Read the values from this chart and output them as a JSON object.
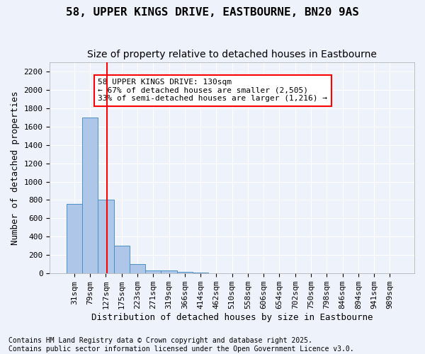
{
  "title1": "58, UPPER KINGS DRIVE, EASTBOURNE, BN20 9AS",
  "title2": "Size of property relative to detached houses in Eastbourne",
  "xlabel": "Distribution of detached houses by size in Eastbourne",
  "ylabel": "Number of detached properties",
  "bin_labels": [
    "31sqm",
    "79sqm",
    "127sqm",
    "175sqm",
    "223sqm",
    "271sqm",
    "319sqm",
    "366sqm",
    "414sqm",
    "462sqm",
    "510sqm",
    "558sqm",
    "606sqm",
    "654sqm",
    "702sqm",
    "750sqm",
    "798sqm",
    "846sqm",
    "894sqm",
    "941sqm",
    "989sqm"
  ],
  "bar_heights": [
    760,
    1695,
    800,
    300,
    105,
    35,
    35,
    20,
    10,
    5,
    3,
    2,
    1,
    0,
    0,
    0,
    0,
    0,
    0,
    0,
    0
  ],
  "bar_color": "#aec6e8",
  "bar_edge_color": "#4a90c4",
  "red_line_x": 2.08,
  "annotation_text": "58 UPPER KINGS DRIVE: 130sqm\n← 67% of detached houses are smaller (2,505)\n33% of semi-detached houses are larger (1,216) →",
  "annotation_box_color": "white",
  "annotation_box_edge_color": "red",
  "ylim": [
    0,
    2300
  ],
  "yticks": [
    0,
    200,
    400,
    600,
    800,
    1000,
    1200,
    1400,
    1600,
    1800,
    2000,
    2200
  ],
  "footnote": "Contains HM Land Registry data © Crown copyright and database right 2025.\nContains public sector information licensed under the Open Government Licence v3.0.",
  "background_color": "#eef2fb",
  "grid_color": "white",
  "title_fontsize": 11.5,
  "subtitle_fontsize": 10,
  "axis_label_fontsize": 9,
  "tick_fontsize": 8,
  "footnote_fontsize": 7
}
